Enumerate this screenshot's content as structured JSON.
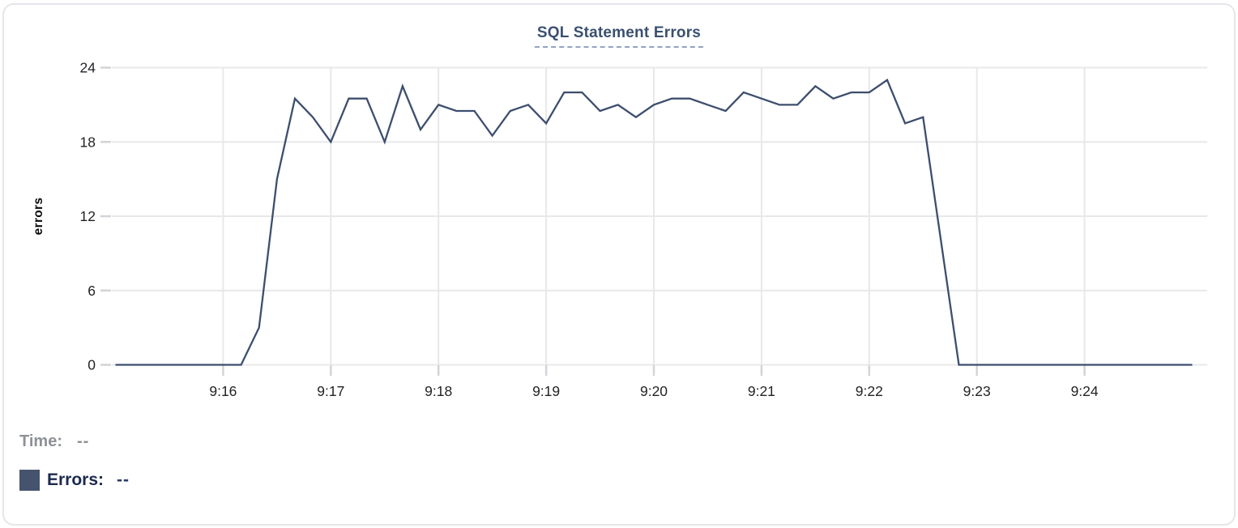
{
  "chart_data": {
    "type": "line",
    "title": "SQL Statement Errors",
    "xlabel": "",
    "ylabel": "errors",
    "ylim": [
      0,
      24
    ],
    "y_ticks": [
      0,
      6,
      12,
      18,
      24
    ],
    "x_ticks": [
      "9:16",
      "9:17",
      "9:18",
      "9:19",
      "9:20",
      "9:21",
      "9:22",
      "9:23",
      "9:24"
    ],
    "x_range": [
      "9:15:00",
      "9:25:00"
    ],
    "grid": true,
    "legend_position": "bottom-left",
    "series": [
      {
        "name": "Errors",
        "color": "#3d4e6e",
        "x": [
          "9:15:00",
          "9:15:10",
          "9:15:20",
          "9:15:30",
          "9:15:40",
          "9:15:50",
          "9:16:00",
          "9:16:10",
          "9:16:20",
          "9:16:30",
          "9:16:40",
          "9:16:50",
          "9:17:00",
          "9:17:10",
          "9:17:20",
          "9:17:30",
          "9:17:40",
          "9:17:50",
          "9:18:00",
          "9:18:10",
          "9:18:20",
          "9:18:30",
          "9:18:40",
          "9:18:50",
          "9:19:00",
          "9:19:10",
          "9:19:20",
          "9:19:30",
          "9:19:40",
          "9:19:50",
          "9:20:00",
          "9:20:10",
          "9:20:20",
          "9:20:30",
          "9:20:40",
          "9:20:50",
          "9:21:00",
          "9:21:10",
          "9:21:20",
          "9:21:30",
          "9:21:40",
          "9:21:50",
          "9:22:00",
          "9:22:10",
          "9:22:20",
          "9:22:30",
          "9:22:40",
          "9:22:50",
          "9:23:00",
          "9:23:10",
          "9:23:20",
          "9:23:30",
          "9:23:40",
          "9:23:50",
          "9:24:00",
          "9:24:10",
          "9:24:20",
          "9:24:30",
          "9:24:40",
          "9:24:50",
          "9:25:00"
        ],
        "values": [
          0,
          0,
          0,
          0,
          0,
          0,
          0,
          0,
          3,
          15,
          21.5,
          20,
          18,
          21.5,
          21.5,
          18,
          22.5,
          19,
          21,
          20.5,
          20.5,
          18.5,
          20.5,
          21,
          19.5,
          22,
          22,
          20.5,
          21,
          20,
          21,
          21.5,
          21.5,
          21,
          20.5,
          22,
          21.5,
          21,
          21,
          22.5,
          21.5,
          22,
          22,
          23,
          19.5,
          20,
          10,
          0,
          0,
          0,
          0,
          0,
          0,
          0,
          0,
          0,
          0,
          0,
          0,
          0,
          0
        ]
      }
    ]
  },
  "tooltip": {
    "time_label": "Time:",
    "time_value": "--",
    "errors_label": "Errors:",
    "errors_value": "--",
    "swatch_color": "#46536e"
  },
  "colors": {
    "title": "#3a5071",
    "title_underline": "#93a3c2",
    "grid": "#e8e8ea",
    "tick": "#d2d4d8",
    "tick_label": "#222326",
    "axis_label": "#0a0a0a",
    "line": "#3d4e6e",
    "card_border": "#e5e6ea"
  }
}
